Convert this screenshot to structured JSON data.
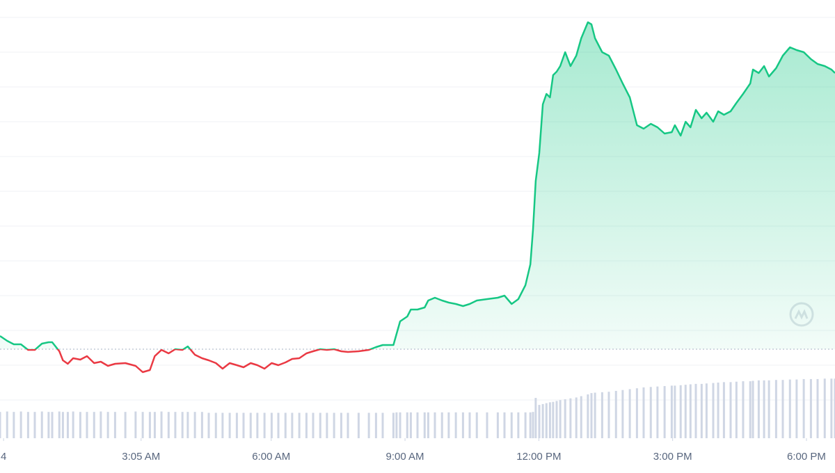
{
  "chart_data": {
    "type": "line",
    "x": [
      -0.08,
      0.08,
      0.23,
      0.39,
      0.55,
      0.7,
      0.86,
      1.01,
      1.09,
      1.25,
      1.33,
      1.44,
      1.56,
      1.72,
      1.87,
      2.03,
      2.18,
      2.34,
      2.5,
      2.73,
      2.96,
      3.12,
      3.28,
      3.39,
      3.54,
      3.7,
      3.85,
      4.01,
      4.13,
      4.29,
      4.45,
      4.6,
      4.76,
      4.91,
      5.07,
      5.23,
      5.38,
      5.54,
      5.69,
      5.85,
      6.01,
      6.16,
      6.32,
      6.47,
      6.63,
      6.79,
      6.94,
      7.1,
      7.25,
      7.41,
      7.57,
      7.72,
      7.96,
      8.19,
      8.35,
      8.5,
      8.74,
      8.81,
      8.89,
      9.05,
      9.13,
      9.28,
      9.44,
      9.52,
      9.67,
      9.83,
      9.98,
      10.14,
      10.3,
      10.45,
      10.61,
      10.84,
      11.08,
      11.23,
      11.39,
      11.54,
      11.7,
      11.81,
      11.87,
      11.93,
      12.01,
      12.09,
      12.17,
      12.25,
      12.32,
      12.4,
      12.48,
      12.59,
      12.71,
      12.84,
      12.95,
      13.1,
      13.18,
      13.26,
      13.42,
      13.57,
      13.73,
      13.88,
      14.04,
      14.2,
      14.35,
      14.51,
      14.66,
      14.82,
      14.98,
      15.05,
      15.18,
      15.29,
      15.4,
      15.52,
      15.65,
      15.76,
      15.91,
      16.02,
      16.15,
      16.3,
      16.43,
      16.58,
      16.74,
      16.8,
      16.93,
      17.05,
      17.16,
      17.32,
      17.47,
      17.63,
      17.78,
      17.94,
      18.1,
      18.25,
      18.41,
      18.56,
      18.64
    ],
    "xlim": [
      -0.08,
      18.64
    ],
    "xticks": [
      {
        "value": 0,
        "label": "4"
      },
      {
        "value": 3.0833,
        "label": "3:05 AM"
      },
      {
        "value": 6,
        "label": "6:00 AM"
      },
      {
        "value": 9,
        "label": "9:00 AM"
      },
      {
        "value": 12,
        "label": "12:00 PM"
      },
      {
        "value": 15,
        "label": "3:00 PM"
      },
      {
        "value": 18,
        "label": "6:00 PM"
      }
    ],
    "ylim": [
      -1.1,
      11.5
    ],
    "yticks": [
      0,
      1,
      2,
      3,
      4,
      5,
      6,
      7,
      8,
      9,
      10,
      11
    ],
    "y2lim": [
      0,
      100
    ],
    "grid": true,
    "baseline": 1.46,
    "series": [
      {
        "type": "line",
        "color": "#16c784",
        "down_color": "#ea3943",
        "values": [
          1.84,
          1.7,
          1.6,
          1.6,
          1.44,
          1.44,
          1.62,
          1.66,
          1.66,
          1.4,
          1.14,
          1.04,
          1.2,
          1.16,
          1.26,
          1.06,
          1.1,
          0.98,
          1.04,
          1.06,
          0.98,
          0.8,
          0.86,
          1.26,
          1.44,
          1.34,
          1.46,
          1.44,
          1.54,
          1.3,
          1.2,
          1.14,
          1.06,
          0.9,
          1.06,
          1.0,
          0.94,
          1.06,
          1.0,
          0.9,
          1.06,
          1.0,
          1.08,
          1.18,
          1.2,
          1.34,
          1.4,
          1.46,
          1.44,
          1.46,
          1.4,
          1.38,
          1.4,
          1.44,
          1.52,
          1.58,
          1.58,
          1.9,
          2.26,
          2.4,
          2.6,
          2.6,
          2.66,
          2.86,
          2.94,
          2.86,
          2.8,
          2.76,
          2.7,
          2.76,
          2.86,
          2.9,
          2.94,
          3.0,
          2.76,
          2.9,
          3.3,
          3.9,
          4.9,
          6.3,
          7.1,
          8.5,
          8.8,
          8.7,
          9.34,
          9.44,
          9.6,
          10.0,
          9.6,
          9.9,
          10.4,
          10.86,
          10.8,
          10.4,
          10.0,
          9.9,
          9.5,
          9.1,
          8.7,
          7.9,
          7.8,
          7.94,
          7.84,
          7.66,
          7.7,
          7.9,
          7.6,
          8.0,
          7.84,
          8.34,
          8.1,
          8.26,
          8.0,
          8.3,
          8.2,
          8.3,
          8.54,
          8.8,
          9.1,
          9.5,
          9.4,
          9.6,
          9.3,
          9.54,
          9.9,
          10.14,
          10.06,
          10.0,
          9.8,
          9.66,
          9.6,
          9.5,
          9.4
        ]
      },
      {
        "type": "bar",
        "axis": "y2",
        "color": "#cfd6e4",
        "values": [
          6.0,
          6.1,
          6.0,
          6.1,
          6.0,
          6.0,
          6.1,
          6.0,
          6.0,
          6.1,
          6.0,
          6.0,
          6.1,
          6.0,
          6.0,
          6.0,
          6.1,
          6.0,
          6.0,
          6.0,
          6.1,
          6.0,
          6.0,
          6.0,
          6.1,
          6.0,
          6.0,
          6.0,
          6.0,
          6.0,
          6.0,
          5.8,
          5.8,
          5.8,
          5.8,
          5.8,
          5.8,
          5.8,
          5.8,
          5.8,
          5.8,
          5.8,
          5.8,
          5.8,
          5.8,
          5.8,
          5.8,
          5.8,
          5.8,
          5.8,
          5.8,
          5.8,
          5.8,
          5.8,
          5.8,
          5.8,
          5.8,
          5.9,
          5.9,
          5.9,
          5.9,
          5.9,
          5.9,
          5.9,
          5.9,
          5.9,
          5.9,
          5.9,
          5.9,
          5.9,
          5.9,
          5.9,
          5.9,
          5.9,
          5.9,
          5.9,
          5.9,
          5.9,
          6.0,
          9.2,
          7.6,
          7.8,
          8.0,
          8.2,
          8.3,
          8.5,
          8.7,
          8.9,
          9.1,
          9.3,
          9.6,
          10.0,
          10.3,
          10.4,
          10.5,
          10.6,
          10.8,
          11.0,
          11.2,
          11.4,
          11.6,
          11.7,
          11.8,
          11.9,
          12.0,
          12.0,
          12.1,
          12.2,
          12.3,
          12.4,
          12.4,
          12.5,
          12.6,
          12.7,
          12.8,
          12.8,
          12.9,
          13.0,
          13.0,
          13.1,
          13.2,
          13.2,
          13.2,
          13.3,
          13.3,
          13.4,
          13.4,
          13.5,
          13.5,
          13.5,
          13.6,
          13.6,
          13.6
        ]
      }
    ]
  }
}
